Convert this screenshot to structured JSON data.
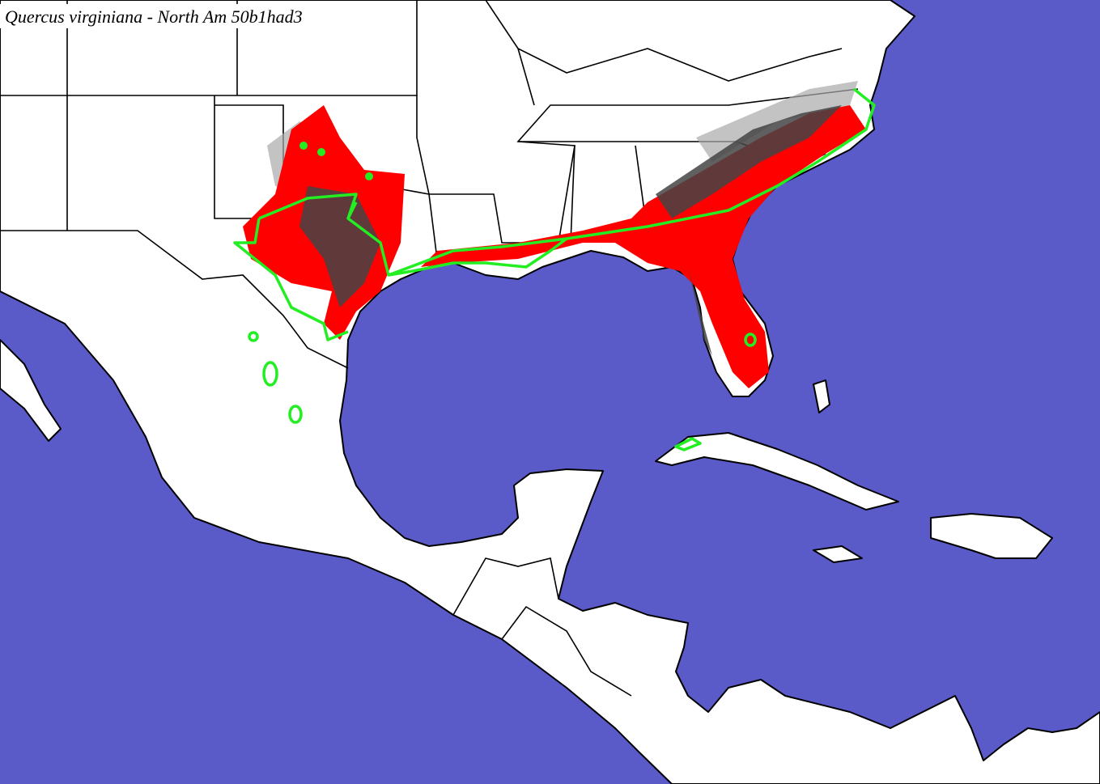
{
  "title": "Quercus virginiana - North Am 50b1had3"
}
